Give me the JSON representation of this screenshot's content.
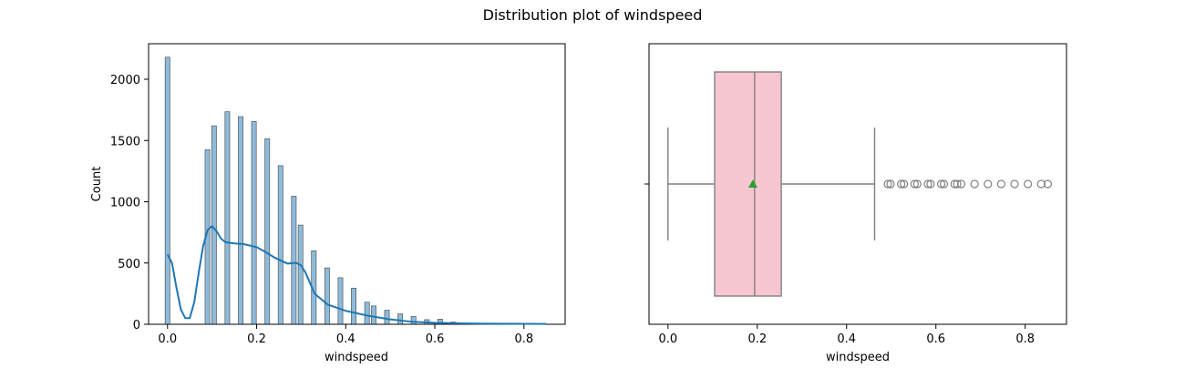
{
  "figure": {
    "suptitle": "Distribution plot of windspeed"
  },
  "chart_data": [
    {
      "type": "histogram",
      "xlabel": "windspeed",
      "ylabel": "Count",
      "xlim": [
        -0.0425,
        0.8925
      ],
      "ylim": [
        0,
        2290
      ],
      "xticks": [
        0.0,
        0.2,
        0.4,
        0.6,
        0.8
      ],
      "xtick_labels": [
        "0.0",
        "0.2",
        "0.4",
        "0.6",
        "0.8"
      ],
      "yticks": [
        0,
        500,
        1000,
        1500,
        2000
      ],
      "ytick_labels": [
        "0",
        "500",
        "1000",
        "1500",
        "2000"
      ],
      "bin_width": 0.0107,
      "bins": [
        {
          "x": 0.0,
          "count": 2180
        },
        {
          "x": 0.0896,
          "count": 1425
        },
        {
          "x": 0.1045,
          "count": 1620
        },
        {
          "x": 0.1343,
          "count": 1735
        },
        {
          "x": 0.1642,
          "count": 1695
        },
        {
          "x": 0.194,
          "count": 1655
        },
        {
          "x": 0.2239,
          "count": 1515
        },
        {
          "x": 0.2537,
          "count": 1295
        },
        {
          "x": 0.2836,
          "count": 1045
        },
        {
          "x": 0.2985,
          "count": 810
        },
        {
          "x": 0.3284,
          "count": 600
        },
        {
          "x": 0.3582,
          "count": 460
        },
        {
          "x": 0.3881,
          "count": 380
        },
        {
          "x": 0.4179,
          "count": 295
        },
        {
          "x": 0.4478,
          "count": 180
        },
        {
          "x": 0.4627,
          "count": 150
        },
        {
          "x": 0.4925,
          "count": 115
        },
        {
          "x": 0.5224,
          "count": 85
        },
        {
          "x": 0.5522,
          "count": 65
        },
        {
          "x": 0.5821,
          "count": 38
        },
        {
          "x": 0.6119,
          "count": 42
        },
        {
          "x": 0.6418,
          "count": 18
        },
        {
          "x": 0.6567,
          "count": 12
        },
        {
          "x": 0.6866,
          "count": 8
        },
        {
          "x": 0.7164,
          "count": 5
        },
        {
          "x": 0.7463,
          "count": 3
        },
        {
          "x": 0.7761,
          "count": 2
        },
        {
          "x": 0.806,
          "count": 2
        },
        {
          "x": 0.8358,
          "count": 1
        },
        {
          "x": 0.8507,
          "count": 1
        }
      ],
      "kde": {
        "x": [
          0.0,
          0.01,
          0.02,
          0.03,
          0.04,
          0.05,
          0.06,
          0.07,
          0.08,
          0.09,
          0.1,
          0.11,
          0.12,
          0.13,
          0.15,
          0.17,
          0.2,
          0.22,
          0.24,
          0.26,
          0.27,
          0.28,
          0.29,
          0.3,
          0.31,
          0.33,
          0.36,
          0.4,
          0.45,
          0.5,
          0.55,
          0.6,
          0.65,
          0.7,
          0.8,
          0.85
        ],
        "y": [
          570,
          500,
          300,
          120,
          50,
          50,
          180,
          420,
          640,
          770,
          800,
          760,
          700,
          670,
          660,
          655,
          630,
          590,
          545,
          510,
          495,
          500,
          500,
          480,
          420,
          250,
          160,
          110,
          70,
          40,
          20,
          12,
          8,
          6,
          4,
          3
        ]
      },
      "bar_color": "#1f77b4",
      "kde_color": "#1f77b4"
    },
    {
      "type": "boxplot",
      "xlabel": "windspeed",
      "xlim": [
        -0.0425,
        0.8925
      ],
      "xticks": [
        0.0,
        0.2,
        0.4,
        0.6,
        0.8
      ],
      "xtick_labels": [
        "0.0",
        "0.2",
        "0.4",
        "0.6",
        "0.8"
      ],
      "whisker_low": 0.0,
      "q1": 0.1045,
      "median": 0.194,
      "q3": 0.2537,
      "whisker_high": 0.4627,
      "mean": 0.1901,
      "outliers": [
        0.4925,
        0.4985,
        0.5224,
        0.5284,
        0.5522,
        0.5582,
        0.5821,
        0.5881,
        0.6119,
        0.6179,
        0.6418,
        0.6478,
        0.6567,
        0.6866,
        0.7164,
        0.7463,
        0.7761,
        0.806,
        0.8358,
        0.8507
      ],
      "box_color": "#f7c6d1",
      "line_color": "#808080",
      "mean_color": "#2ca02c"
    }
  ]
}
